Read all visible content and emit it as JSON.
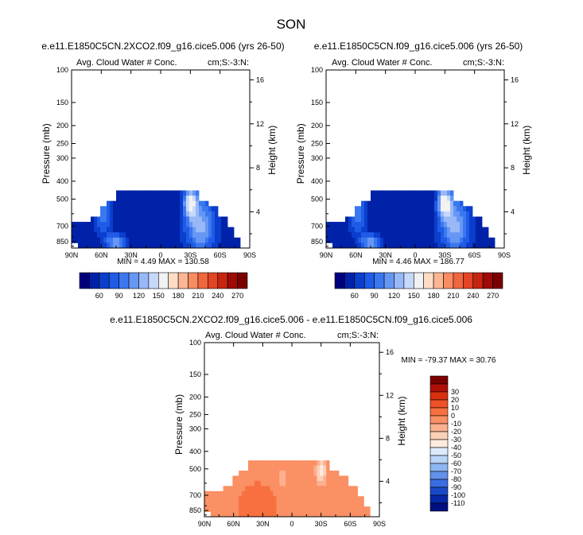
{
  "figure_title": "SON",
  "panel_left": {
    "title": "e.e11.E1850C5CN.2XCO2.f09_g16.cice5.006 (yrs 26-50)",
    "left_label": "Avg. Cloud Water # Conc.",
    "right_label": "cm;S:-3:N:",
    "stats": "MIN =  4.49  MAX = 130.58"
  },
  "panel_right": {
    "title": "e.e11.E1850C5CN.f09_g16.cice5.006 (yrs 26-50)",
    "left_label": "Avg. Cloud Water # Conc.",
    "right_label": "cm;S:-3:N:",
    "stats": "MIN =  4.46  MAX = 186.77"
  },
  "panel_diff": {
    "title": "e.e11.E1850C5CN.2XCO2.f09_g16.cice5.006 - e.e11.E1850C5CN.f09_g16.cice5.006",
    "left_label": "Avg. Cloud Water # Conc.",
    "right_label": "cm;S:-3:N:",
    "stats": "MIN = -79.37  MAX =  30.76"
  },
  "chart_data": [
    {
      "type": "heatmap",
      "name": "panel-left",
      "title": "e.e11.E1850C5CN.2XCO2.f09_g16.cice5.006 (yrs 26-50)",
      "xlabel": "",
      "ylabel": "Pressure (mb)",
      "y2label": "Height (km)",
      "xticks": [
        "90N",
        "60N",
        "30N",
        "0",
        "30S",
        "60S",
        "90S"
      ],
      "yticks": [
        "100",
        "150",
        "200",
        "250",
        "300",
        "400",
        "500",
        "700",
        "850"
      ],
      "y2ticks": [
        "16",
        "12",
        "8",
        "4"
      ],
      "min": 4.49,
      "max": 130.58,
      "colorbar": {
        "labels": [
          "60",
          "90",
          "120",
          "150",
          "180",
          "210",
          "240",
          "270"
        ],
        "colors": [
          "#00007F",
          "#0022A8",
          "#0A3ECC",
          "#1F5BE6",
          "#3B78F0",
          "#6797F5",
          "#98B8F8",
          "#C6D9FB",
          "#F2F2F2",
          "#FFDCC6",
          "#FDB694",
          "#FA8C62",
          "#F0663E",
          "#E24424",
          "#C52511",
          "#9E0A05",
          "#7A0000"
        ]
      }
    },
    {
      "type": "heatmap",
      "name": "panel-right",
      "title": "e.e11.E1850C5CN.f09_g16.cice5.006 (yrs 26-50)",
      "xlabel": "",
      "ylabel": "Pressure (mb)",
      "y2label": "Height (km)",
      "xticks": [
        "90N",
        "60N",
        "30N",
        "0",
        "30S",
        "60S",
        "90S"
      ],
      "yticks": [
        "100",
        "150",
        "200",
        "250",
        "300",
        "400",
        "500",
        "700",
        "850"
      ],
      "y2ticks": [
        "16",
        "12",
        "8",
        "4"
      ],
      "min": 4.46,
      "max": 186.77,
      "colorbar": {
        "labels": [
          "60",
          "90",
          "120",
          "150",
          "180",
          "210",
          "240",
          "270"
        ],
        "colors": [
          "#00007F",
          "#0022A8",
          "#0A3ECC",
          "#1F5BE6",
          "#3B78F0",
          "#6797F5",
          "#98B8F8",
          "#C6D9FB",
          "#F2F2F2",
          "#FFDCC6",
          "#FDB694",
          "#FA8C62",
          "#F0663E",
          "#E24424",
          "#C52511",
          "#9E0A05",
          "#7A0000"
        ]
      }
    },
    {
      "type": "heatmap",
      "name": "panel-diff",
      "title": "e.e11.E1850C5CN.2XCO2.f09_g16.cice5.006 - e.e11.E1850C5CN.f09_g16.cice5.006",
      "xlabel": "",
      "ylabel": "Pressure (mb)",
      "y2label": "Height (km)",
      "xticks": [
        "90N",
        "60N",
        "30N",
        "0",
        "30S",
        "60S",
        "90S"
      ],
      "yticks": [
        "100",
        "150",
        "200",
        "250",
        "300",
        "400",
        "500",
        "700",
        "850"
      ],
      "y2ticks": [
        "16",
        "12",
        "8",
        "4"
      ],
      "min": -79.37,
      "max": 30.76,
      "colorbar": {
        "labels": [
          "30",
          "20",
          "10",
          "0",
          "-10",
          "-20",
          "-30",
          "-40",
          "-50",
          "-60",
          "-70",
          "-80",
          "-90",
          "-100",
          "-110"
        ],
        "colors": [
          "#7A0000",
          "#B01008",
          "#D8300F",
          "#EF5128",
          "#F8703F",
          "#FA9064",
          "#FCB090",
          "#FDD0B8",
          "#FEECDF",
          "#DCEBFB",
          "#B8D4F6",
          "#8EB6F2",
          "#6291EC",
          "#3A6DE2",
          "#1A49C8",
          "#0627A6",
          "#000F80"
        ]
      }
    }
  ]
}
